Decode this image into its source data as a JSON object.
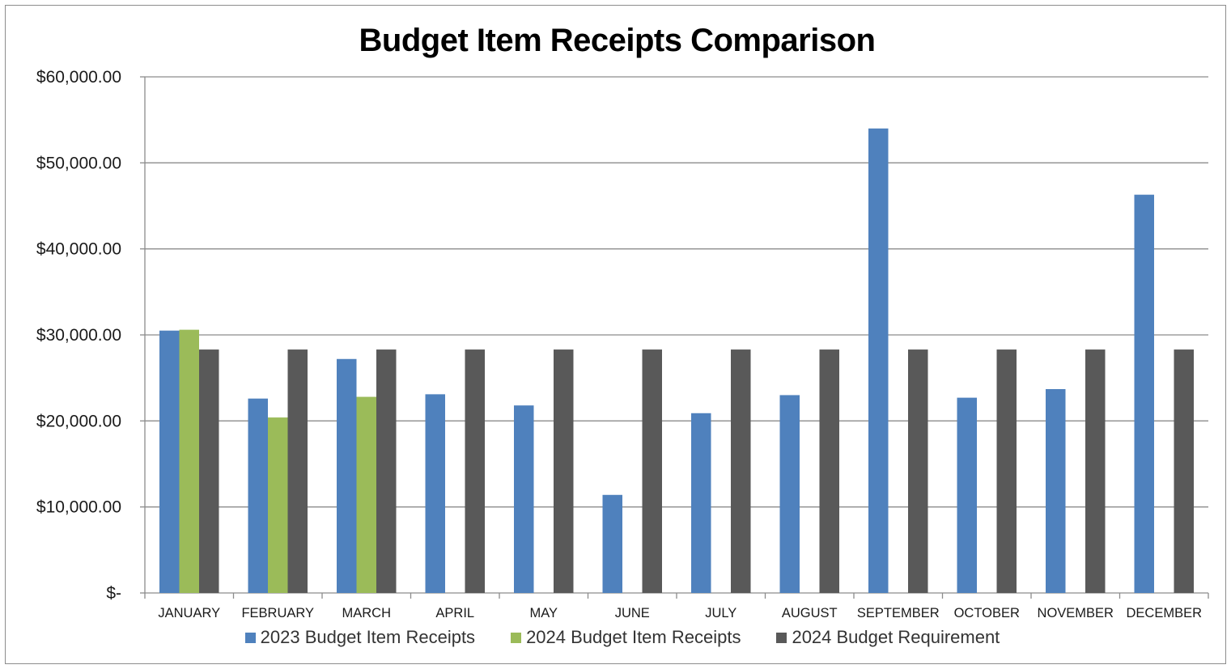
{
  "colors": {
    "series_2023": "#4f81bd",
    "series_2024": "#9bbb59",
    "requirement": "#595959",
    "gridline": "#8c8c8c",
    "axis": "#8c8c8c",
    "tick_label": "#1a1a1a"
  },
  "chart_data": {
    "type": "bar",
    "title": "Budget Item Receipts Comparison",
    "xlabel": "",
    "ylabel": "",
    "ylim": [
      0,
      60000
    ],
    "yticks": [
      0,
      10000,
      20000,
      30000,
      40000,
      50000,
      60000
    ],
    "ytick_labels": [
      "$-",
      "$10,000.00",
      "$20,000.00",
      "$30,000.00",
      "$40,000.00",
      "$50,000.00",
      "$60,000.00"
    ],
    "grid": true,
    "legend_position": "bottom",
    "categories": [
      "JANUARY",
      "FEBRUARY",
      "MARCH",
      "APRIL",
      "MAY",
      "JUNE",
      "JULY",
      "AUGUST",
      "SEPTEMBER",
      "OCTOBER",
      "NOVEMBER",
      "DECEMBER"
    ],
    "series": [
      {
        "name": "2023 Budget Item Receipts",
        "values": [
          30500,
          22600,
          27200,
          23100,
          21800,
          11400,
          20900,
          23000,
          54000,
          22700,
          23700,
          46300
        ]
      },
      {
        "name": "2024 Budget Item Receipts",
        "values": [
          30600,
          20400,
          22800,
          null,
          null,
          null,
          null,
          null,
          null,
          null,
          null,
          null
        ]
      },
      {
        "name": "2024 Budget Requirement",
        "values": [
          28300,
          28300,
          28300,
          28300,
          28300,
          28300,
          28300,
          28300,
          28300,
          28300,
          28300,
          28300
        ]
      }
    ]
  }
}
